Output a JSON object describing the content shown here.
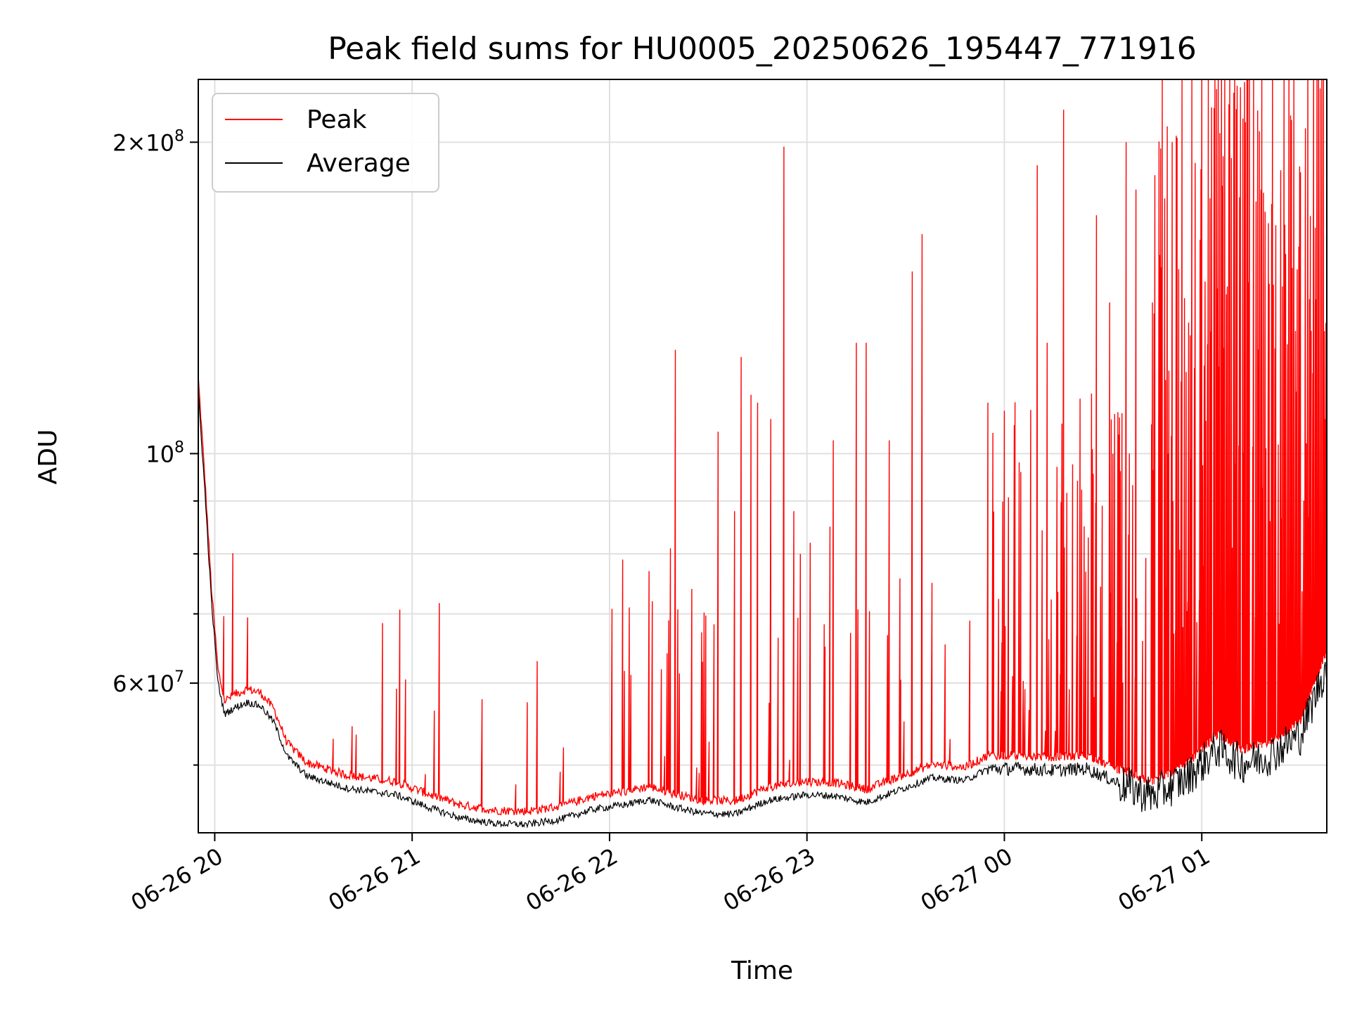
{
  "chart_data": {
    "type": "line",
    "title": "Peak field sums for HU0005_20250626_195447_771916",
    "xlabel": "Time",
    "ylabel": "ADU",
    "y_scale": "log",
    "ylim": [
      43000000,
      230000000
    ],
    "xlim": [
      "2025-06-26T19:55",
      "2025-06-27T01:38"
    ],
    "grid": true,
    "legend_position": "top-left",
    "x_ticks": [
      {
        "label": "06-26 20",
        "t": "2025-06-26T20:00"
      },
      {
        "label": "06-26 21",
        "t": "2025-06-26T21:00"
      },
      {
        "label": "06-26 22",
        "t": "2025-06-26T22:00"
      },
      {
        "label": "06-26 23",
        "t": "2025-06-26T23:00"
      },
      {
        "label": "06-27 00",
        "t": "2025-06-27T00:00"
      },
      {
        "label": "06-27 01",
        "t": "2025-06-27T01:00"
      }
    ],
    "y_ticks_labeled": [
      {
        "mantissa": "2",
        "exp": "8",
        "value": 200000000
      },
      {
        "mantissa": "",
        "exp": "8",
        "value": 100000000
      },
      {
        "mantissa": "6",
        "exp": "7",
        "value": 60000000
      }
    ],
    "y_ticks_minor": [
      50000000,
      70000000,
      80000000,
      90000000
    ],
    "series": [
      {
        "name": "Average",
        "color": "#000000",
        "points": [
          [
            "2025-06-26T19:55",
            115000000
          ],
          [
            "2025-06-26T19:57",
            92000000
          ],
          [
            "2025-06-26T19:59",
            72000000
          ],
          [
            "2025-06-26T20:01",
            60000000
          ],
          [
            "2025-06-26T20:03",
            56000000
          ],
          [
            "2025-06-26T20:06",
            56800000
          ],
          [
            "2025-06-26T20:10",
            57500000
          ],
          [
            "2025-06-26T20:14",
            57000000
          ],
          [
            "2025-06-26T20:18",
            55000000
          ],
          [
            "2025-06-26T20:22",
            51000000
          ],
          [
            "2025-06-26T20:28",
            48800000
          ],
          [
            "2025-06-26T20:40",
            47500000
          ],
          [
            "2025-06-26T20:55",
            46800000
          ],
          [
            "2025-06-26T21:05",
            45500000
          ],
          [
            "2025-06-26T21:15",
            44400000
          ],
          [
            "2025-06-26T21:25",
            43900000
          ],
          [
            "2025-06-26T21:35",
            43800000
          ],
          [
            "2025-06-26T21:45",
            44300000
          ],
          [
            "2025-06-26T21:55",
            45300000
          ],
          [
            "2025-06-26T22:05",
            45800000
          ],
          [
            "2025-06-26T22:12",
            46300000
          ],
          [
            "2025-06-26T22:20",
            45500000
          ],
          [
            "2025-06-26T22:28",
            44900000
          ],
          [
            "2025-06-26T22:38",
            44800000
          ],
          [
            "2025-06-26T22:48",
            46200000
          ],
          [
            "2025-06-26T23:00",
            46800000
          ],
          [
            "2025-06-26T23:08",
            46700000
          ],
          [
            "2025-06-26T23:18",
            46000000
          ],
          [
            "2025-06-26T23:28",
            47300000
          ],
          [
            "2025-06-26T23:38",
            48600000
          ],
          [
            "2025-06-26T23:48",
            48300000
          ],
          [
            "2025-06-26T23:55",
            49600000
          ],
          [
            "2025-06-27T00:05",
            49600000
          ],
          [
            "2025-06-27T00:15",
            49400000
          ],
          [
            "2025-06-27T00:25",
            49600000
          ],
          [
            "2025-06-27T00:35",
            48000000
          ],
          [
            "2025-06-27T00:45",
            46700000
          ],
          [
            "2025-06-27T00:55",
            48500000
          ],
          [
            "2025-06-27T01:05",
            52000000
          ],
          [
            "2025-06-27T01:12",
            50200000
          ],
          [
            "2025-06-27T01:20",
            51000000
          ],
          [
            "2025-06-27T01:30",
            53500000
          ],
          [
            "2025-06-27T01:38",
            62500000
          ]
        ]
      },
      {
        "name": "Peak",
        "color": "#ff0000",
        "spikes": [
          [
            "2025-06-26T20:36",
            53000000
          ],
          [
            "2025-06-26T20:43",
            53500000
          ],
          [
            "2025-06-26T20:58",
            60500000
          ],
          [
            "2025-06-26T21:04",
            49000000
          ],
          [
            "2025-06-26T21:35",
            57500000
          ],
          [
            "2025-06-26T21:38",
            63000000
          ],
          [
            "2025-06-26T21:46",
            52000000
          ],
          [
            "2025-06-26T22:04",
            79000000
          ],
          [
            "2025-06-26T22:06",
            71000000
          ],
          [
            "2025-06-26T22:12",
            77000000
          ],
          [
            "2025-06-26T22:13",
            72000000
          ],
          [
            "2025-06-26T22:18",
            69000000
          ],
          [
            "2025-06-26T22:18.5",
            81000000
          ],
          [
            "2025-06-26T22:20",
            126000000
          ],
          [
            "2025-06-26T22:25",
            74000000
          ],
          [
            "2025-06-26T22:33",
            105000000
          ],
          [
            "2025-06-26T22:38",
            88000000
          ],
          [
            "2025-06-26T22:40",
            124000000
          ],
          [
            "2025-06-26T22:43",
            114000000
          ],
          [
            "2025-06-26T22:45",
            112000000
          ],
          [
            "2025-06-26T22:49",
            108000000
          ],
          [
            "2025-06-26T22:53",
            198000000
          ],
          [
            "2025-06-26T22:56",
            88000000
          ],
          [
            "2025-06-26T22:58",
            80000000
          ],
          [
            "2025-06-26T23:01",
            82000000
          ],
          [
            "2025-06-26T23:07",
            85000000
          ],
          [
            "2025-06-26T23:08",
            103000000
          ],
          [
            "2025-06-26T23:15",
            128000000
          ],
          [
            "2025-06-26T23:18",
            128000000
          ],
          [
            "2025-06-26T23:25",
            103000000
          ],
          [
            "2025-06-26T23:32",
            150000000
          ],
          [
            "2025-06-26T23:35",
            163000000
          ],
          [
            "2025-06-26T23:38",
            75000000
          ],
          [
            "2025-06-26T23:55",
            112000000
          ],
          [
            "2025-06-27T00:00",
            110000000
          ],
          [
            "2025-06-27T00:05",
            96000000
          ],
          [
            "2025-06-27T00:10",
            190000000
          ],
          [
            "2025-06-27T00:13",
            128000000
          ],
          [
            "2025-06-27T00:18",
            215000000
          ],
          [
            "2025-06-27T00:23",
            113000000
          ],
          [
            "2025-06-27T00:28",
            170000000
          ],
          [
            "2025-06-27T00:32",
            140000000
          ],
          [
            "2025-06-27T00:37",
            200000000
          ],
          [
            "2025-06-27T00:40",
            180000000
          ],
          [
            "2025-06-27T00:45",
            140000000
          ],
          [
            "2025-06-27T00:48",
            230000000
          ],
          [
            "2025-06-27T00:51",
            200000000
          ],
          [
            "2025-06-27T00:54",
            230000000
          ],
          [
            "2025-06-27T00:57",
            230000000
          ],
          [
            "2025-06-27T01:00",
            230000000
          ],
          [
            "2025-06-27T01:02",
            230000000
          ],
          [
            "2025-06-27T01:04",
            230000000
          ],
          [
            "2025-06-27T01:05",
            230000000
          ],
          [
            "2025-06-27T01:07",
            230000000
          ],
          [
            "2025-06-27T01:10",
            230000000
          ],
          [
            "2025-06-27T01:14",
            230000000
          ],
          [
            "2025-06-27T01:18",
            180000000
          ],
          [
            "2025-06-27T01:25",
            230000000
          ],
          [
            "2025-06-27T01:30",
            75000000
          ],
          [
            "2025-06-27T01:35",
            230000000
          ],
          [
            "2025-06-27T01:37",
            230000000
          ]
        ]
      }
    ]
  }
}
